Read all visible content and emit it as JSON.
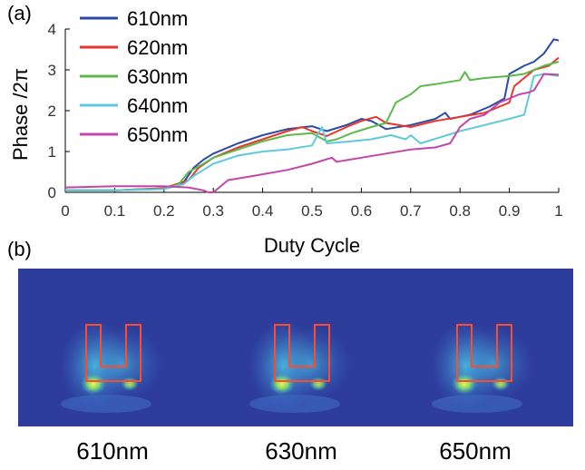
{
  "panel_a": {
    "label": "(a)"
  },
  "panel_b": {
    "label": "(b)",
    "captions": [
      "610nm",
      "630nm",
      "650nm"
    ],
    "colors": {
      "background": "#2e3d9c",
      "outline": "#ff4b2b",
      "hot": "#f6f25a"
    }
  },
  "chart_data": {
    "type": "line",
    "xlabel": "Duty Cycle",
    "ylabel": "Phase /2π",
    "xlim": [
      0,
      1
    ],
    "ylim": [
      0,
      4
    ],
    "xticks": [
      "0",
      "0.1",
      "0.2",
      "0.3",
      "0.4",
      "0.5",
      "0.6",
      "0.7",
      "0.8",
      "0.9",
      "1"
    ],
    "yticks": [
      "0",
      "1",
      "2",
      "3",
      "4"
    ],
    "grid": false,
    "legend": "top-left",
    "series": [
      {
        "name": "610nm",
        "color": "#2a4aa8",
        "points": [
          [
            0,
            0.05
          ],
          [
            0.1,
            0.05
          ],
          [
            0.2,
            0.1
          ],
          [
            0.24,
            0.25
          ],
          [
            0.26,
            0.6
          ],
          [
            0.28,
            0.8
          ],
          [
            0.3,
            0.95
          ],
          [
            0.35,
            1.2
          ],
          [
            0.4,
            1.4
          ],
          [
            0.45,
            1.55
          ],
          [
            0.5,
            1.62
          ],
          [
            0.53,
            1.5
          ],
          [
            0.57,
            1.65
          ],
          [
            0.6,
            1.8
          ],
          [
            0.62,
            1.75
          ],
          [
            0.65,
            1.55
          ],
          [
            0.7,
            1.65
          ],
          [
            0.75,
            1.8
          ],
          [
            0.77,
            1.95
          ],
          [
            0.78,
            1.8
          ],
          [
            0.82,
            1.9
          ],
          [
            0.86,
            2.1
          ],
          [
            0.89,
            2.3
          ],
          [
            0.9,
            2.9
          ],
          [
            0.93,
            3.1
          ],
          [
            0.95,
            3.2
          ],
          [
            0.97,
            3.4
          ],
          [
            0.99,
            3.75
          ],
          [
            1.0,
            3.72
          ]
        ]
      },
      {
        "name": "620nm",
        "color": "#e8362a",
        "points": [
          [
            0,
            0.05
          ],
          [
            0.1,
            0.05
          ],
          [
            0.2,
            0.1
          ],
          [
            0.25,
            0.3
          ],
          [
            0.27,
            0.6
          ],
          [
            0.3,
            0.85
          ],
          [
            0.35,
            1.1
          ],
          [
            0.4,
            1.3
          ],
          [
            0.45,
            1.5
          ],
          [
            0.48,
            1.6
          ],
          [
            0.5,
            1.5
          ],
          [
            0.53,
            1.38
          ],
          [
            0.57,
            1.6
          ],
          [
            0.6,
            1.75
          ],
          [
            0.63,
            1.85
          ],
          [
            0.65,
            1.7
          ],
          [
            0.7,
            1.6
          ],
          [
            0.75,
            1.75
          ],
          [
            0.8,
            1.85
          ],
          [
            0.85,
            1.95
          ],
          [
            0.9,
            2.2
          ],
          [
            0.91,
            2.6
          ],
          [
            0.94,
            2.9
          ],
          [
            0.95,
            3.0
          ],
          [
            0.98,
            3.1
          ],
          [
            1.0,
            3.3
          ]
        ]
      },
      {
        "name": "630nm",
        "color": "#5cb848",
        "points": [
          [
            0,
            0.05
          ],
          [
            0.1,
            0.05
          ],
          [
            0.2,
            0.08
          ],
          [
            0.23,
            0.2
          ],
          [
            0.25,
            0.5
          ],
          [
            0.28,
            0.7
          ],
          [
            0.3,
            0.85
          ],
          [
            0.35,
            1.05
          ],
          [
            0.4,
            1.25
          ],
          [
            0.45,
            1.4
          ],
          [
            0.5,
            1.45
          ],
          [
            0.53,
            1.25
          ],
          [
            0.55,
            1.3
          ],
          [
            0.58,
            1.45
          ],
          [
            0.62,
            1.6
          ],
          [
            0.65,
            1.7
          ],
          [
            0.67,
            2.2
          ],
          [
            0.7,
            2.4
          ],
          [
            0.72,
            2.6
          ],
          [
            0.75,
            2.65
          ],
          [
            0.8,
            2.75
          ],
          [
            0.81,
            2.95
          ],
          [
            0.82,
            2.75
          ],
          [
            0.85,
            2.8
          ],
          [
            0.9,
            2.85
          ],
          [
            0.93,
            2.9
          ],
          [
            0.95,
            3.0
          ],
          [
            0.97,
            3.1
          ],
          [
            1.0,
            3.2
          ]
        ]
      },
      {
        "name": "640nm",
        "color": "#5ec9dc",
        "points": [
          [
            0,
            0.05
          ],
          [
            0.1,
            0.05
          ],
          [
            0.2,
            0.08
          ],
          [
            0.24,
            0.2
          ],
          [
            0.26,
            0.4
          ],
          [
            0.28,
            0.55
          ],
          [
            0.3,
            0.7
          ],
          [
            0.35,
            0.9
          ],
          [
            0.4,
            1.0
          ],
          [
            0.45,
            1.05
          ],
          [
            0.5,
            1.15
          ],
          [
            0.52,
            1.6
          ],
          [
            0.53,
            1.2
          ],
          [
            0.58,
            1.25
          ],
          [
            0.62,
            1.3
          ],
          [
            0.66,
            1.4
          ],
          [
            0.69,
            1.3
          ],
          [
            0.7,
            1.4
          ],
          [
            0.72,
            1.2
          ],
          [
            0.76,
            1.35
          ],
          [
            0.8,
            1.5
          ],
          [
            0.85,
            1.65
          ],
          [
            0.9,
            1.8
          ],
          [
            0.93,
            1.9
          ],
          [
            0.95,
            2.85
          ],
          [
            0.97,
            2.9
          ],
          [
            1.0,
            2.85
          ]
        ]
      },
      {
        "name": "650nm",
        "color": "#c445a8",
        "points": [
          [
            0,
            0.12
          ],
          [
            0.1,
            0.15
          ],
          [
            0.2,
            0.15
          ],
          [
            0.25,
            0.12
          ],
          [
            0.28,
            0.05
          ],
          [
            0.29,
            0.0
          ],
          [
            0.3,
            0.0
          ],
          [
            0.31,
            0.1
          ],
          [
            0.33,
            0.3
          ],
          [
            0.38,
            0.4
          ],
          [
            0.45,
            0.55
          ],
          [
            0.5,
            0.7
          ],
          [
            0.54,
            0.85
          ],
          [
            0.55,
            0.75
          ],
          [
            0.6,
            0.85
          ],
          [
            0.65,
            0.95
          ],
          [
            0.7,
            1.05
          ],
          [
            0.75,
            1.1
          ],
          [
            0.78,
            1.2
          ],
          [
            0.8,
            1.6
          ],
          [
            0.82,
            1.8
          ],
          [
            0.85,
            1.9
          ],
          [
            0.88,
            2.2
          ],
          [
            0.9,
            2.3
          ],
          [
            0.92,
            2.4
          ],
          [
            0.94,
            2.45
          ],
          [
            0.95,
            2.5
          ],
          [
            0.97,
            2.9
          ],
          [
            1.0,
            2.88
          ]
        ]
      }
    ]
  }
}
